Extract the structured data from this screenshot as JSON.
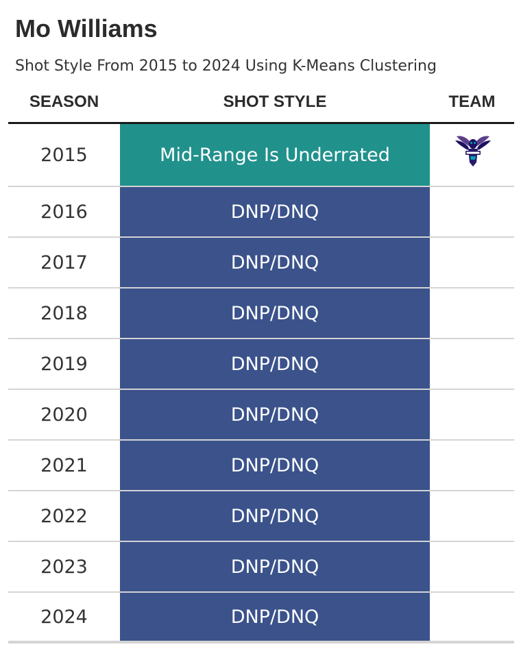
{
  "title": "Mo Williams",
  "subtitle": "Shot Style From 2015 to 2024 Using K-Means Clustering",
  "headers": {
    "season": "SEASON",
    "shot_style": "SHOT STYLE",
    "team": "TEAM"
  },
  "colors": {
    "Mid-Range Is Underrated": "#21918c",
    "DNP/DNQ": "#3b528b"
  },
  "chart_data": {
    "type": "table",
    "columns": [
      "SEASON",
      "SHOT STYLE",
      "TEAM"
    ],
    "rows": [
      {
        "season": "2015",
        "shot_style": "Mid-Range Is Underrated",
        "team": "hornets-logo"
      },
      {
        "season": "2016",
        "shot_style": "DNP/DNQ",
        "team": ""
      },
      {
        "season": "2017",
        "shot_style": "DNP/DNQ",
        "team": ""
      },
      {
        "season": "2018",
        "shot_style": "DNP/DNQ",
        "team": ""
      },
      {
        "season": "2019",
        "shot_style": "DNP/DNQ",
        "team": ""
      },
      {
        "season": "2020",
        "shot_style": "DNP/DNQ",
        "team": ""
      },
      {
        "season": "2021",
        "shot_style": "DNP/DNQ",
        "team": ""
      },
      {
        "season": "2022",
        "shot_style": "DNP/DNQ",
        "team": ""
      },
      {
        "season": "2023",
        "shot_style": "DNP/DNQ",
        "team": ""
      },
      {
        "season": "2024",
        "shot_style": "DNP/DNQ",
        "team": ""
      }
    ]
  }
}
